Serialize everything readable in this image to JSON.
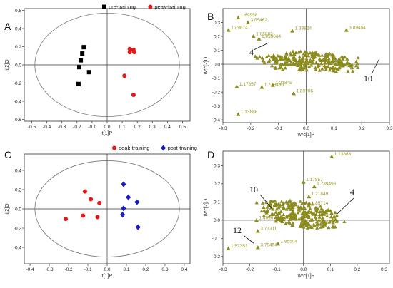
{
  "chart_data": [
    {
      "panel": "A",
      "type": "scatter",
      "xlabel": "t[1]P",
      "ylabel": "t[2]O",
      "xlim": [
        -0.55,
        0.55
      ],
      "ylim": [
        -0.62,
        0.62
      ],
      "xticks": [
        "-0.5",
        "-0.4",
        "-0.3",
        "-0.2",
        "-0.1",
        "0.0",
        "0.1",
        "0.2",
        "0.3",
        "0.4",
        "0.5"
      ],
      "yticks": [
        "0.6",
        "0.4",
        "0.2",
        "0.0",
        "-0.2",
        "-0.4",
        "-0.6"
      ],
      "legend": "top-center",
      "ellipse": {
        "rx": 0.48,
        "ry": 0.57
      },
      "series": [
        {
          "name": "pre-training",
          "marker": "square",
          "color": "#000000",
          "points": [
            [
              -0.155,
              0.195
            ],
            [
              -0.165,
              0.125
            ],
            [
              -0.175,
              0.05
            ],
            [
              -0.12,
              -0.08
            ],
            [
              -0.185,
              -0.025
            ],
            [
              -0.19,
              -0.21
            ]
          ]
        },
        {
          "name": "peak-training",
          "marker": "circle",
          "color": "#e0191b",
          "points": [
            [
              0.15,
              0.175
            ],
            [
              0.175,
              0.165
            ],
            [
              0.15,
              0.14
            ],
            [
              0.18,
              0.14
            ],
            [
              0.115,
              -0.12
            ],
            [
              0.175,
              -0.33
            ]
          ]
        }
      ]
    },
    {
      "panel": "B",
      "type": "scatter",
      "xlabel": "w*c[1]P",
      "ylabel": "w*c[2]O",
      "xlim": [
        -0.3,
        0.3
      ],
      "ylim": [
        -0.42,
        0.4
      ],
      "xticks": [
        "-0.3",
        "-0.2",
        "-0.1",
        "0.0",
        "0.1",
        "0.2",
        "0.3"
      ],
      "yticks": [
        "0.3",
        "0.2",
        "0.1",
        "0.0",
        "-0.1",
        "-0.2",
        "-0.3",
        "-0.4"
      ],
      "marker_color": "#8b8b1e",
      "labeled_points": [
        {
          "label": "1.69958",
          "x": -0.245,
          "y": 0.335
        },
        {
          "label": "3.05462",
          "x": -0.21,
          "y": 0.3
        },
        {
          "label": "1.09874",
          "x": -0.28,
          "y": 0.245
        },
        {
          "label": "1.05882",
          "x": -0.19,
          "y": 0.2
        },
        {
          "label": "1.859664",
          "x": -0.17,
          "y": 0.182
        },
        {
          "label": "1.33824",
          "x": -0.05,
          "y": 0.24
        },
        {
          "label": "3.09454",
          "x": 0.145,
          "y": 0.245
        },
        {
          "label": "1.17857",
          "x": -0.25,
          "y": -0.16
        },
        {
          "label": "1.739496",
          "x": -0.16,
          "y": -0.165
        },
        {
          "label": "1.21849",
          "x": -0.12,
          "y": -0.15
        },
        {
          "label": "1.89706",
          "x": -0.045,
          "y": -0.21
        },
        {
          "label": "1.13866",
          "x": -0.245,
          "y": -0.36
        }
      ],
      "annotations": [
        "4",
        "10"
      ]
    },
    {
      "panel": "C",
      "type": "scatter",
      "xlabel": "t[1]P",
      "ylabel": "t[2]O",
      "xlim": [
        -0.43,
        0.43
      ],
      "ylim": [
        -0.57,
        0.57
      ],
      "xticks": [
        "-0.4",
        "-0.3",
        "-0.2",
        "-0.1",
        "0.0",
        "0.1",
        "0.2",
        "0.3",
        "0.4"
      ],
      "yticks": [
        "0.4",
        "0.2",
        "0.0",
        "-0.2",
        "-0.4"
      ],
      "legend": "top-center",
      "ellipse": {
        "rx": 0.375,
        "ry": 0.5
      },
      "series": [
        {
          "name": "peak-training",
          "marker": "circle",
          "color": "#e0191b",
          "points": [
            [
              -0.115,
              0.18
            ],
            [
              -0.085,
              0.1
            ],
            [
              -0.04,
              0.06
            ],
            [
              -0.125,
              -0.07
            ],
            [
              -0.05,
              -0.085
            ],
            [
              -0.215,
              -0.105
            ]
          ]
        },
        {
          "name": "post-training",
          "marker": "diamond",
          "color": "#1a1ac8",
          "points": [
            [
              0.085,
              0.255
            ],
            [
              0.11,
              0.12
            ],
            [
              0.155,
              0.07
            ],
            [
              0.085,
              0.005
            ],
            [
              0.08,
              -0.06
            ],
            [
              0.16,
              -0.19
            ]
          ]
        }
      ]
    },
    {
      "panel": "D",
      "type": "scatter",
      "xlabel": "w*c[1]P",
      "ylabel": "w*c[2]O",
      "xlim": [
        -0.3,
        0.32
      ],
      "ylim": [
        -0.24,
        0.38
      ],
      "xticks": [
        "-0.3",
        "-0.2",
        "-0.1",
        "0.0",
        "0.1",
        "0.2",
        "0.3"
      ],
      "yticks": [
        "0.3",
        "0.2",
        "0.1",
        "0.0",
        "-0.1",
        "-0.2"
      ],
      "marker_color": "#8b8b1e",
      "labeled_points": [
        {
          "label": "1.13866",
          "x": 0.105,
          "y": 0.35
        },
        {
          "label": "1.17857",
          "x": 0.0,
          "y": 0.21
        },
        {
          "label": "1.739496",
          "x": 0.04,
          "y": 0.185
        },
        {
          "label": "1.21849",
          "x": 0.02,
          "y": 0.13
        },
        {
          "label": "1.85714",
          "x": 0.02,
          "y": 0.08
        },
        {
          "label": "1.4916",
          "x": -0.175,
          "y": 0.0
        },
        {
          "label": "3.77311",
          "x": -0.17,
          "y": -0.06
        },
        {
          "label": "1.57353",
          "x": -0.28,
          "y": -0.155
        },
        {
          "label": "3.79454",
          "x": -0.17,
          "y": -0.15
        },
        {
          "label": "1.85504",
          "x": -0.095,
          "y": -0.13
        },
        {
          "label": "1.9664",
          "x": 0.05,
          "y": -0.025
        }
      ],
      "annotations": [
        "10",
        "4",
        "12"
      ]
    }
  ]
}
